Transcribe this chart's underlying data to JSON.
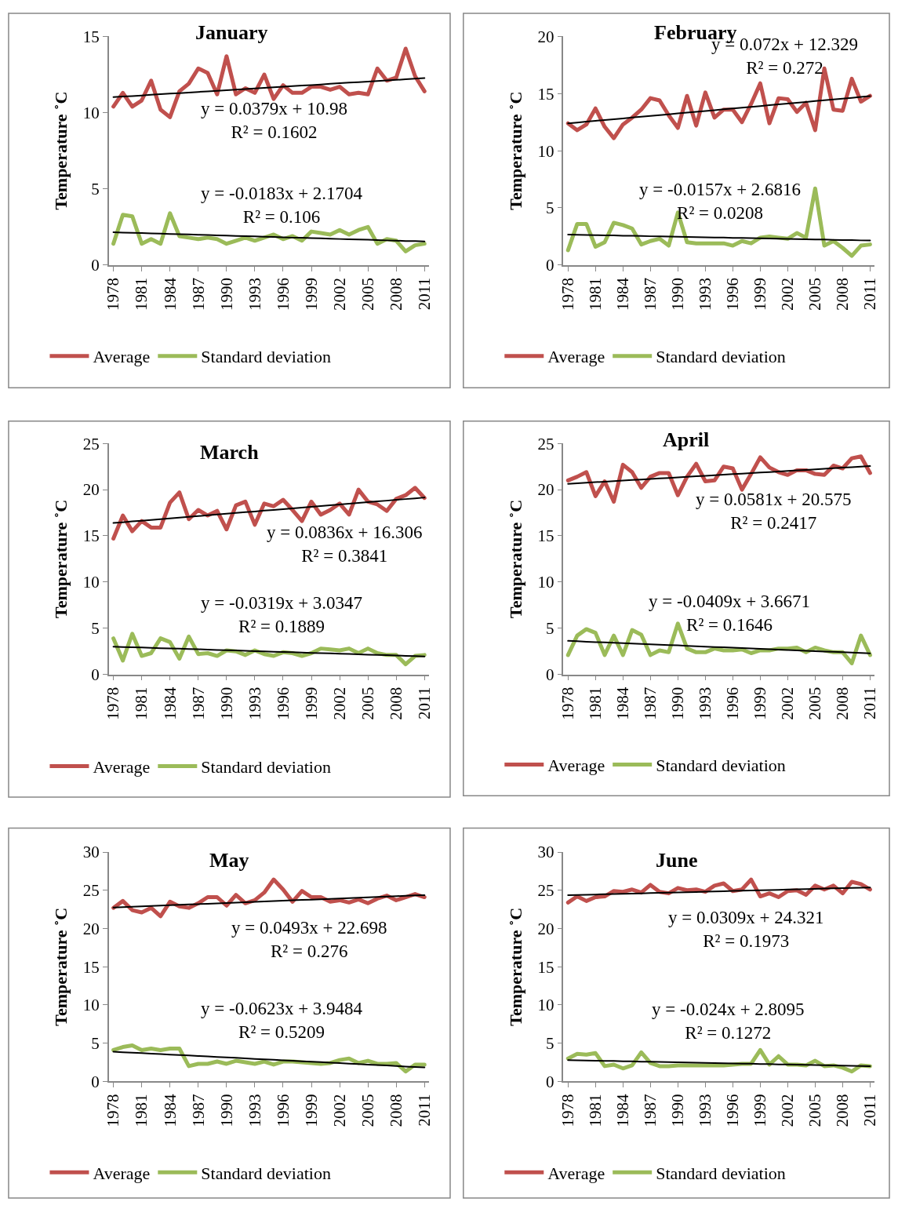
{
  "chart_data": [
    {
      "type": "line",
      "title": "January",
      "ylabel": "Temperature ˚C",
      "legend": "bottom",
      "x": [
        1978,
        1979,
        1980,
        1981,
        1982,
        1983,
        1984,
        1985,
        1986,
        1987,
        1988,
        1989,
        1990,
        1991,
        1992,
        1993,
        1994,
        1995,
        1996,
        1997,
        1998,
        1999,
        2000,
        2001,
        2002,
        2003,
        2004,
        2005,
        2006,
        2007,
        2008,
        2009,
        2010,
        2011
      ],
      "xlim": [
        1977.5,
        2011.5
      ],
      "xticks": [
        1978,
        1981,
        1984,
        1987,
        1990,
        1993,
        1996,
        1999,
        2002,
        2005,
        2008,
        2011
      ],
      "ylim": [
        0,
        15
      ],
      "yticks": [
        0,
        5,
        10,
        15
      ],
      "series": [
        {
          "name": "Average",
          "color": "#c0504d",
          "values": [
            10.4,
            11.3,
            10.4,
            10.8,
            12.1,
            10.2,
            9.7,
            11.4,
            11.9,
            12.9,
            12.6,
            11.2,
            13.7,
            11.2,
            11.6,
            11.3,
            12.5,
            10.9,
            11.8,
            11.3,
            11.3,
            11.7,
            11.7,
            11.5,
            11.7,
            11.2,
            11.3,
            11.2,
            12.9,
            12.1,
            12.3,
            14.2,
            12.4,
            11.4
          ]
        },
        {
          "name": "Standard deviation",
          "color": "#9bbb59",
          "values": [
            1.4,
            3.3,
            3.2,
            1.4,
            1.7,
            1.4,
            3.4,
            1.9,
            1.8,
            1.7,
            1.8,
            1.7,
            1.4,
            1.6,
            1.8,
            1.6,
            1.8,
            2.0,
            1.7,
            1.9,
            1.6,
            2.2,
            2.1,
            2.0,
            2.3,
            2.0,
            2.3,
            2.5,
            1.4,
            1.7,
            1.6,
            0.9,
            1.3,
            1.4
          ]
        },
        {
          "color": "#000000",
          "values": [
            11.02,
            11.06,
            11.09,
            11.13,
            11.17,
            11.21,
            11.25,
            11.28,
            11.32,
            11.36,
            11.4,
            11.43,
            11.47,
            11.51,
            11.55,
            11.59,
            11.62,
            11.66,
            11.7,
            11.74,
            11.78,
            11.81,
            11.85,
            11.89,
            11.93,
            11.97,
            12.0,
            12.04,
            12.08,
            12.12,
            12.15,
            12.19,
            12.23,
            12.27
          ]
        },
        {
          "color": "#000000",
          "values": [
            2.15,
            2.13,
            2.12,
            2.1,
            2.08,
            2.06,
            2.04,
            2.02,
            2.01,
            1.99,
            1.97,
            1.95,
            1.93,
            1.91,
            1.9,
            1.88,
            1.86,
            1.84,
            1.82,
            1.8,
            1.79,
            1.77,
            1.75,
            1.73,
            1.71,
            1.69,
            1.68,
            1.66,
            1.64,
            1.62,
            1.6,
            1.58,
            1.57,
            1.55
          ]
        }
      ],
      "annotations": [
        "y = 0.0379x + 10.98\nR² = 0.1602",
        "y = -0.0183x + 2.1704\nR² = 0.106"
      ]
    },
    {
      "type": "line",
      "title": "February",
      "ylabel": "Temperature ˚C",
      "legend": "bottom",
      "x": [
        1978,
        1979,
        1980,
        1981,
        1982,
        1983,
        1984,
        1985,
        1986,
        1987,
        1988,
        1989,
        1990,
        1991,
        1992,
        1993,
        1994,
        1995,
        1996,
        1997,
        1998,
        1999,
        2000,
        2001,
        2002,
        2003,
        2004,
        2005,
        2006,
        2007,
        2008,
        2009,
        2010,
        2011
      ],
      "xlim": [
        1977.5,
        2011.5
      ],
      "xticks": [
        1978,
        1981,
        1984,
        1987,
        1990,
        1993,
        1996,
        1999,
        2002,
        2005,
        2008,
        2011
      ],
      "ylim": [
        0,
        20
      ],
      "yticks": [
        0,
        5,
        10,
        15,
        20
      ],
      "series": [
        {
          "name": "Average",
          "color": "#c0504d",
          "values": [
            12.4,
            11.8,
            12.3,
            13.7,
            12.1,
            11.1,
            12.3,
            12.9,
            13.6,
            14.6,
            14.4,
            13.1,
            12.0,
            14.8,
            12.2,
            15.1,
            12.9,
            13.6,
            13.6,
            12.5,
            14.1,
            15.9,
            12.4,
            14.6,
            14.5,
            13.4,
            14.2,
            11.8,
            17.2,
            13.6,
            13.5,
            16.3,
            14.3,
            14.8
          ]
        },
        {
          "name": "Standard deviation",
          "color": "#9bbb59",
          "values": [
            1.3,
            3.6,
            3.6,
            1.6,
            2.0,
            3.7,
            3.5,
            3.2,
            1.8,
            2.1,
            2.3,
            1.7,
            4.6,
            2.0,
            1.9,
            1.9,
            1.9,
            1.9,
            1.7,
            2.1,
            1.9,
            2.4,
            2.5,
            2.4,
            2.3,
            2.8,
            2.4,
            6.7,
            1.7,
            2.1,
            1.5,
            0.8,
            1.7,
            1.8
          ]
        },
        {
          "color": "#000000",
          "values": [
            12.4,
            12.47,
            12.55,
            12.62,
            12.69,
            12.76,
            12.83,
            12.91,
            12.98,
            13.05,
            13.12,
            13.19,
            13.27,
            13.34,
            13.41,
            13.48,
            13.55,
            13.63,
            13.7,
            13.77,
            13.84,
            13.91,
            13.99,
            14.06,
            14.13,
            14.2,
            14.27,
            14.35,
            14.42,
            14.49,
            14.56,
            14.63,
            14.71,
            14.78
          ]
        },
        {
          "color": "#000000",
          "values": [
            2.67,
            2.65,
            2.63,
            2.62,
            2.6,
            2.59,
            2.57,
            2.56,
            2.54,
            2.52,
            2.51,
            2.49,
            2.48,
            2.46,
            2.45,
            2.43,
            2.41,
            2.4,
            2.38,
            2.37,
            2.35,
            2.34,
            2.32,
            2.3,
            2.29,
            2.27,
            2.26,
            2.24,
            2.23,
            2.21,
            2.19,
            2.18,
            2.16,
            2.15
          ]
        }
      ],
      "annotations": [
        "y = 0.072x + 12.329\nR² = 0.272",
        "y = -0.0157x + 2.6816\nR² = 0.0208"
      ]
    },
    {
      "type": "line",
      "title": "March",
      "ylabel": "Temperature ˚C",
      "legend": "bottom",
      "x": [
        1978,
        1979,
        1980,
        1981,
        1982,
        1983,
        1984,
        1985,
        1986,
        1987,
        1988,
        1989,
        1990,
        1991,
        1992,
        1993,
        1994,
        1995,
        1996,
        1997,
        1998,
        1999,
        2000,
        2001,
        2002,
        2003,
        2004,
        2005,
        2006,
        2007,
        2008,
        2009,
        2010,
        2011
      ],
      "xlim": [
        1977.5,
        2011.5
      ],
      "xticks": [
        1978,
        1981,
        1984,
        1987,
        1990,
        1993,
        1996,
        1999,
        2002,
        2005,
        2008,
        2011
      ],
      "ylim": [
        0,
        25
      ],
      "yticks": [
        0,
        5,
        10,
        15,
        20,
        25
      ],
      "series": [
        {
          "name": "Average",
          "color": "#c0504d",
          "values": [
            14.7,
            17.2,
            15.5,
            16.6,
            15.9,
            15.9,
            18.6,
            19.7,
            16.8,
            17.8,
            17.2,
            17.7,
            15.7,
            18.3,
            18.7,
            16.2,
            18.5,
            18.2,
            18.9,
            17.8,
            16.6,
            18.7,
            17.3,
            17.8,
            18.5,
            17.3,
            20.0,
            18.7,
            18.4,
            17.7,
            19.0,
            19.4,
            20.2,
            19.1
          ]
        },
        {
          "name": "Standard deviation",
          "color": "#9bbb59",
          "values": [
            3.9,
            1.5,
            4.4,
            2.0,
            2.3,
            3.9,
            3.5,
            1.7,
            4.1,
            2.2,
            2.3,
            2.0,
            2.6,
            2.5,
            2.1,
            2.6,
            2.2,
            2.0,
            2.4,
            2.3,
            2.0,
            2.3,
            2.8,
            2.7,
            2.6,
            2.8,
            2.3,
            2.8,
            2.3,
            2.1,
            2.1,
            1.1,
            2.0,
            2.1
          ]
        },
        {
          "color": "#000000",
          "values": [
            16.39,
            16.47,
            16.56,
            16.64,
            16.72,
            16.81,
            16.89,
            16.97,
            17.06,
            17.14,
            17.23,
            17.31,
            17.39,
            17.48,
            17.56,
            17.64,
            17.73,
            17.81,
            17.89,
            17.98,
            18.06,
            18.15,
            18.23,
            18.31,
            18.4,
            18.48,
            18.56,
            18.65,
            18.73,
            18.81,
            18.9,
            18.98,
            19.06,
            19.15
          ]
        },
        {
          "color": "#000000",
          "values": [
            3.0,
            2.97,
            2.94,
            2.91,
            2.88,
            2.84,
            2.81,
            2.78,
            2.75,
            2.72,
            2.68,
            2.65,
            2.62,
            2.59,
            2.56,
            2.52,
            2.49,
            2.46,
            2.43,
            2.4,
            2.36,
            2.33,
            2.3,
            2.27,
            2.24,
            2.21,
            2.17,
            2.14,
            2.11,
            2.08,
            2.05,
            2.01,
            1.98,
            1.95
          ]
        }
      ],
      "annotations": [
        "y = 0.0836x + 16.306\nR² = 0.3841",
        "y = -0.0319x + 3.0347\nR² = 0.1889"
      ]
    },
    {
      "type": "line",
      "title": "April",
      "ylabel": "Temperature ˚C",
      "legend": "bottom",
      "x": [
        1978,
        1979,
        1980,
        1981,
        1982,
        1983,
        1984,
        1985,
        1986,
        1987,
        1988,
        1989,
        1990,
        1991,
        1992,
        1993,
        1994,
        1995,
        1996,
        1997,
        1998,
        1999,
        2000,
        2001,
        2002,
        2003,
        2004,
        2005,
        2006,
        2007,
        2008,
        2009,
        2010,
        2011
      ],
      "xlim": [
        1977.5,
        2011.5
      ],
      "xticks": [
        1978,
        1981,
        1984,
        1987,
        1990,
        1993,
        1996,
        1999,
        2002,
        2005,
        2008,
        2011
      ],
      "ylim": [
        0,
        25
      ],
      "yticks": [
        0,
        5,
        10,
        15,
        20,
        25
      ],
      "series": [
        {
          "name": "Average",
          "color": "#c0504d",
          "values": [
            21.0,
            21.4,
            21.9,
            19.3,
            20.9,
            18.7,
            22.7,
            21.9,
            20.2,
            21.4,
            21.8,
            21.8,
            19.4,
            21.4,
            22.8,
            20.9,
            21.0,
            22.5,
            22.3,
            20.0,
            21.7,
            23.5,
            22.4,
            21.9,
            21.6,
            22.1,
            22.1,
            21.7,
            21.6,
            22.6,
            22.3,
            23.4,
            23.6,
            21.8
          ]
        },
        {
          "name": "Standard deviation",
          "color": "#9bbb59",
          "values": [
            2.1,
            4.2,
            4.9,
            4.5,
            2.1,
            4.2,
            2.1,
            4.8,
            4.3,
            2.1,
            2.6,
            2.4,
            5.5,
            2.8,
            2.4,
            2.4,
            2.8,
            2.6,
            2.6,
            2.7,
            2.3,
            2.6,
            2.6,
            2.8,
            2.8,
            2.9,
            2.4,
            2.9,
            2.6,
            2.4,
            2.4,
            1.2,
            4.2,
            2.1
          ]
        },
        {
          "color": "#000000",
          "values": [
            20.63,
            20.69,
            20.75,
            20.81,
            20.87,
            20.92,
            20.98,
            21.04,
            21.1,
            21.16,
            21.21,
            21.27,
            21.33,
            21.39,
            21.45,
            21.5,
            21.56,
            21.62,
            21.68,
            21.74,
            21.8,
            21.85,
            21.91,
            21.97,
            22.03,
            22.09,
            22.14,
            22.2,
            22.26,
            22.32,
            22.38,
            22.43,
            22.49,
            22.55
          ]
        },
        {
          "color": "#000000",
          "values": [
            3.63,
            3.59,
            3.54,
            3.5,
            3.46,
            3.42,
            3.38,
            3.34,
            3.3,
            3.26,
            3.22,
            3.18,
            3.14,
            3.09,
            3.05,
            3.01,
            2.97,
            2.93,
            2.89,
            2.85,
            2.81,
            2.77,
            2.73,
            2.69,
            2.64,
            2.6,
            2.56,
            2.52,
            2.48,
            2.44,
            2.4,
            2.36,
            2.32,
            2.28
          ]
        }
      ],
      "annotations": [
        "y = 0.0581x + 20.575\nR² = 0.2417",
        "y = -0.0409x + 3.6671\nR² = 0.1646"
      ]
    },
    {
      "type": "line",
      "title": "May",
      "ylabel": "Temperature ˚C",
      "legend": "bottom",
      "x": [
        1978,
        1979,
        1980,
        1981,
        1982,
        1983,
        1984,
        1985,
        1986,
        1987,
        1988,
        1989,
        1990,
        1991,
        1992,
        1993,
        1994,
        1995,
        1996,
        1997,
        1998,
        1999,
        2000,
        2001,
        2002,
        2003,
        2004,
        2005,
        2006,
        2007,
        2008,
        2009,
        2010,
        2011
      ],
      "xlim": [
        1977.5,
        2011.5
      ],
      "xticks": [
        1978,
        1981,
        1984,
        1987,
        1990,
        1993,
        1996,
        1999,
        2002,
        2005,
        2008,
        2011
      ],
      "ylim": [
        0,
        30
      ],
      "yticks": [
        0,
        5,
        10,
        15,
        20,
        25,
        30
      ],
      "series": [
        {
          "name": "Average",
          "color": "#c0504d",
          "values": [
            22.7,
            23.6,
            22.4,
            22.1,
            22.7,
            21.6,
            23.5,
            22.9,
            22.7,
            23.3,
            24.1,
            24.1,
            23.0,
            24.4,
            23.3,
            23.7,
            24.7,
            26.4,
            25.1,
            23.5,
            24.9,
            24.1,
            24.1,
            23.5,
            23.7,
            23.4,
            23.8,
            23.3,
            23.9,
            24.3,
            23.7,
            24.1,
            24.5,
            24.1
          ]
        },
        {
          "name": "Standard deviation",
          "color": "#9bbb59",
          "values": [
            4.1,
            4.5,
            4.7,
            4.1,
            4.3,
            4.1,
            4.3,
            4.3,
            2.0,
            2.3,
            2.3,
            2.6,
            2.3,
            2.7,
            2.5,
            2.3,
            2.6,
            2.2,
            2.6,
            2.6,
            2.5,
            2.4,
            2.3,
            2.4,
            2.8,
            3.0,
            2.4,
            2.7,
            2.3,
            2.3,
            2.4,
            1.3,
            2.2,
            2.2
          ]
        },
        {
          "color": "#000000",
          "values": [
            22.75,
            22.8,
            22.85,
            22.9,
            22.94,
            22.99,
            23.04,
            23.09,
            23.14,
            23.19,
            23.24,
            23.29,
            23.34,
            23.39,
            23.44,
            23.49,
            23.54,
            23.59,
            23.63,
            23.68,
            23.73,
            23.78,
            23.83,
            23.88,
            23.93,
            23.98,
            24.03,
            24.08,
            24.13,
            24.18,
            24.23,
            24.28,
            24.32,
            24.37
          ]
        },
        {
          "color": "#000000",
          "values": [
            3.89,
            3.82,
            3.76,
            3.7,
            3.64,
            3.57,
            3.51,
            3.45,
            3.39,
            3.33,
            3.26,
            3.2,
            3.14,
            3.08,
            3.01,
            2.95,
            2.89,
            2.83,
            2.76,
            2.7,
            2.64,
            2.58,
            2.52,
            2.45,
            2.39,
            2.33,
            2.27,
            2.2,
            2.14,
            2.08,
            2.02,
            1.95,
            1.89,
            1.83
          ]
        }
      ],
      "annotations": [
        "y = 0.0493x + 22.698\nR² = 0.276",
        "y = -0.0623x + 3.9484\nR² = 0.5209"
      ]
    },
    {
      "type": "line",
      "title": "June",
      "ylabel": "Temperature ˚C",
      "legend": "bottom",
      "x": [
        1978,
        1979,
        1980,
        1981,
        1982,
        1983,
        1984,
        1985,
        1986,
        1987,
        1988,
        1989,
        1990,
        1991,
        1992,
        1993,
        1994,
        1995,
        1996,
        1997,
        1998,
        1999,
        2000,
        2001,
        2002,
        2003,
        2004,
        2005,
        2006,
        2007,
        2008,
        2009,
        2010,
        2011
      ],
      "xlim": [
        1977.5,
        2011.5
      ],
      "xticks": [
        1978,
        1981,
        1984,
        1987,
        1990,
        1993,
        1996,
        1999,
        2002,
        2005,
        2008,
        2011
      ],
      "ylim": [
        0,
        30
      ],
      "yticks": [
        0,
        5,
        10,
        15,
        20,
        25,
        30
      ],
      "series": [
        {
          "name": "Average",
          "color": "#c0504d",
          "values": [
            23.4,
            24.2,
            23.6,
            24.1,
            24.2,
            24.9,
            24.8,
            25.1,
            24.7,
            25.7,
            24.8,
            24.6,
            25.3,
            25.0,
            25.1,
            24.8,
            25.6,
            25.9,
            24.9,
            25.1,
            26.4,
            24.2,
            24.6,
            24.1,
            24.9,
            25.0,
            24.4,
            25.6,
            25.1,
            25.6,
            24.6,
            26.1,
            25.8,
            25.1
          ]
        },
        {
          "name": "Standard deviation",
          "color": "#9bbb59",
          "values": [
            3.0,
            3.6,
            3.5,
            3.7,
            2.0,
            2.2,
            1.7,
            2.1,
            3.8,
            2.4,
            2.0,
            2.0,
            2.1,
            2.1,
            2.1,
            2.1,
            2.1,
            2.1,
            2.2,
            2.3,
            2.3,
            4.1,
            2.2,
            3.3,
            2.2,
            2.2,
            2.1,
            2.7,
            2.0,
            2.1,
            1.8,
            1.3,
            2.1,
            2.0
          ]
        },
        {
          "color": "#000000",
          "values": [
            24.35,
            24.38,
            24.41,
            24.44,
            24.48,
            24.51,
            24.54,
            24.57,
            24.6,
            24.63,
            24.66,
            24.69,
            24.72,
            24.75,
            24.78,
            24.82,
            24.85,
            24.88,
            24.91,
            24.94,
            24.97,
            25.0,
            25.03,
            25.06,
            25.09,
            25.12,
            25.16,
            25.19,
            25.22,
            25.25,
            25.28,
            25.31,
            25.34,
            25.37
          ]
        },
        {
          "color": "#000000",
          "values": [
            2.79,
            2.76,
            2.74,
            2.71,
            2.69,
            2.67,
            2.64,
            2.62,
            2.59,
            2.57,
            2.55,
            2.52,
            2.5,
            2.47,
            2.45,
            2.43,
            2.4,
            2.38,
            2.35,
            2.33,
            2.31,
            2.28,
            2.26,
            2.23,
            2.21,
            2.19,
            2.16,
            2.14,
            2.11,
            2.09,
            2.07,
            2.04,
            2.02,
            1.99
          ]
        }
      ],
      "annotations": [
        "y = 0.0309x + 24.321\nR² = 0.1973",
        "y = -0.024x + 2.8095\nR² = 0.1272"
      ]
    }
  ]
}
